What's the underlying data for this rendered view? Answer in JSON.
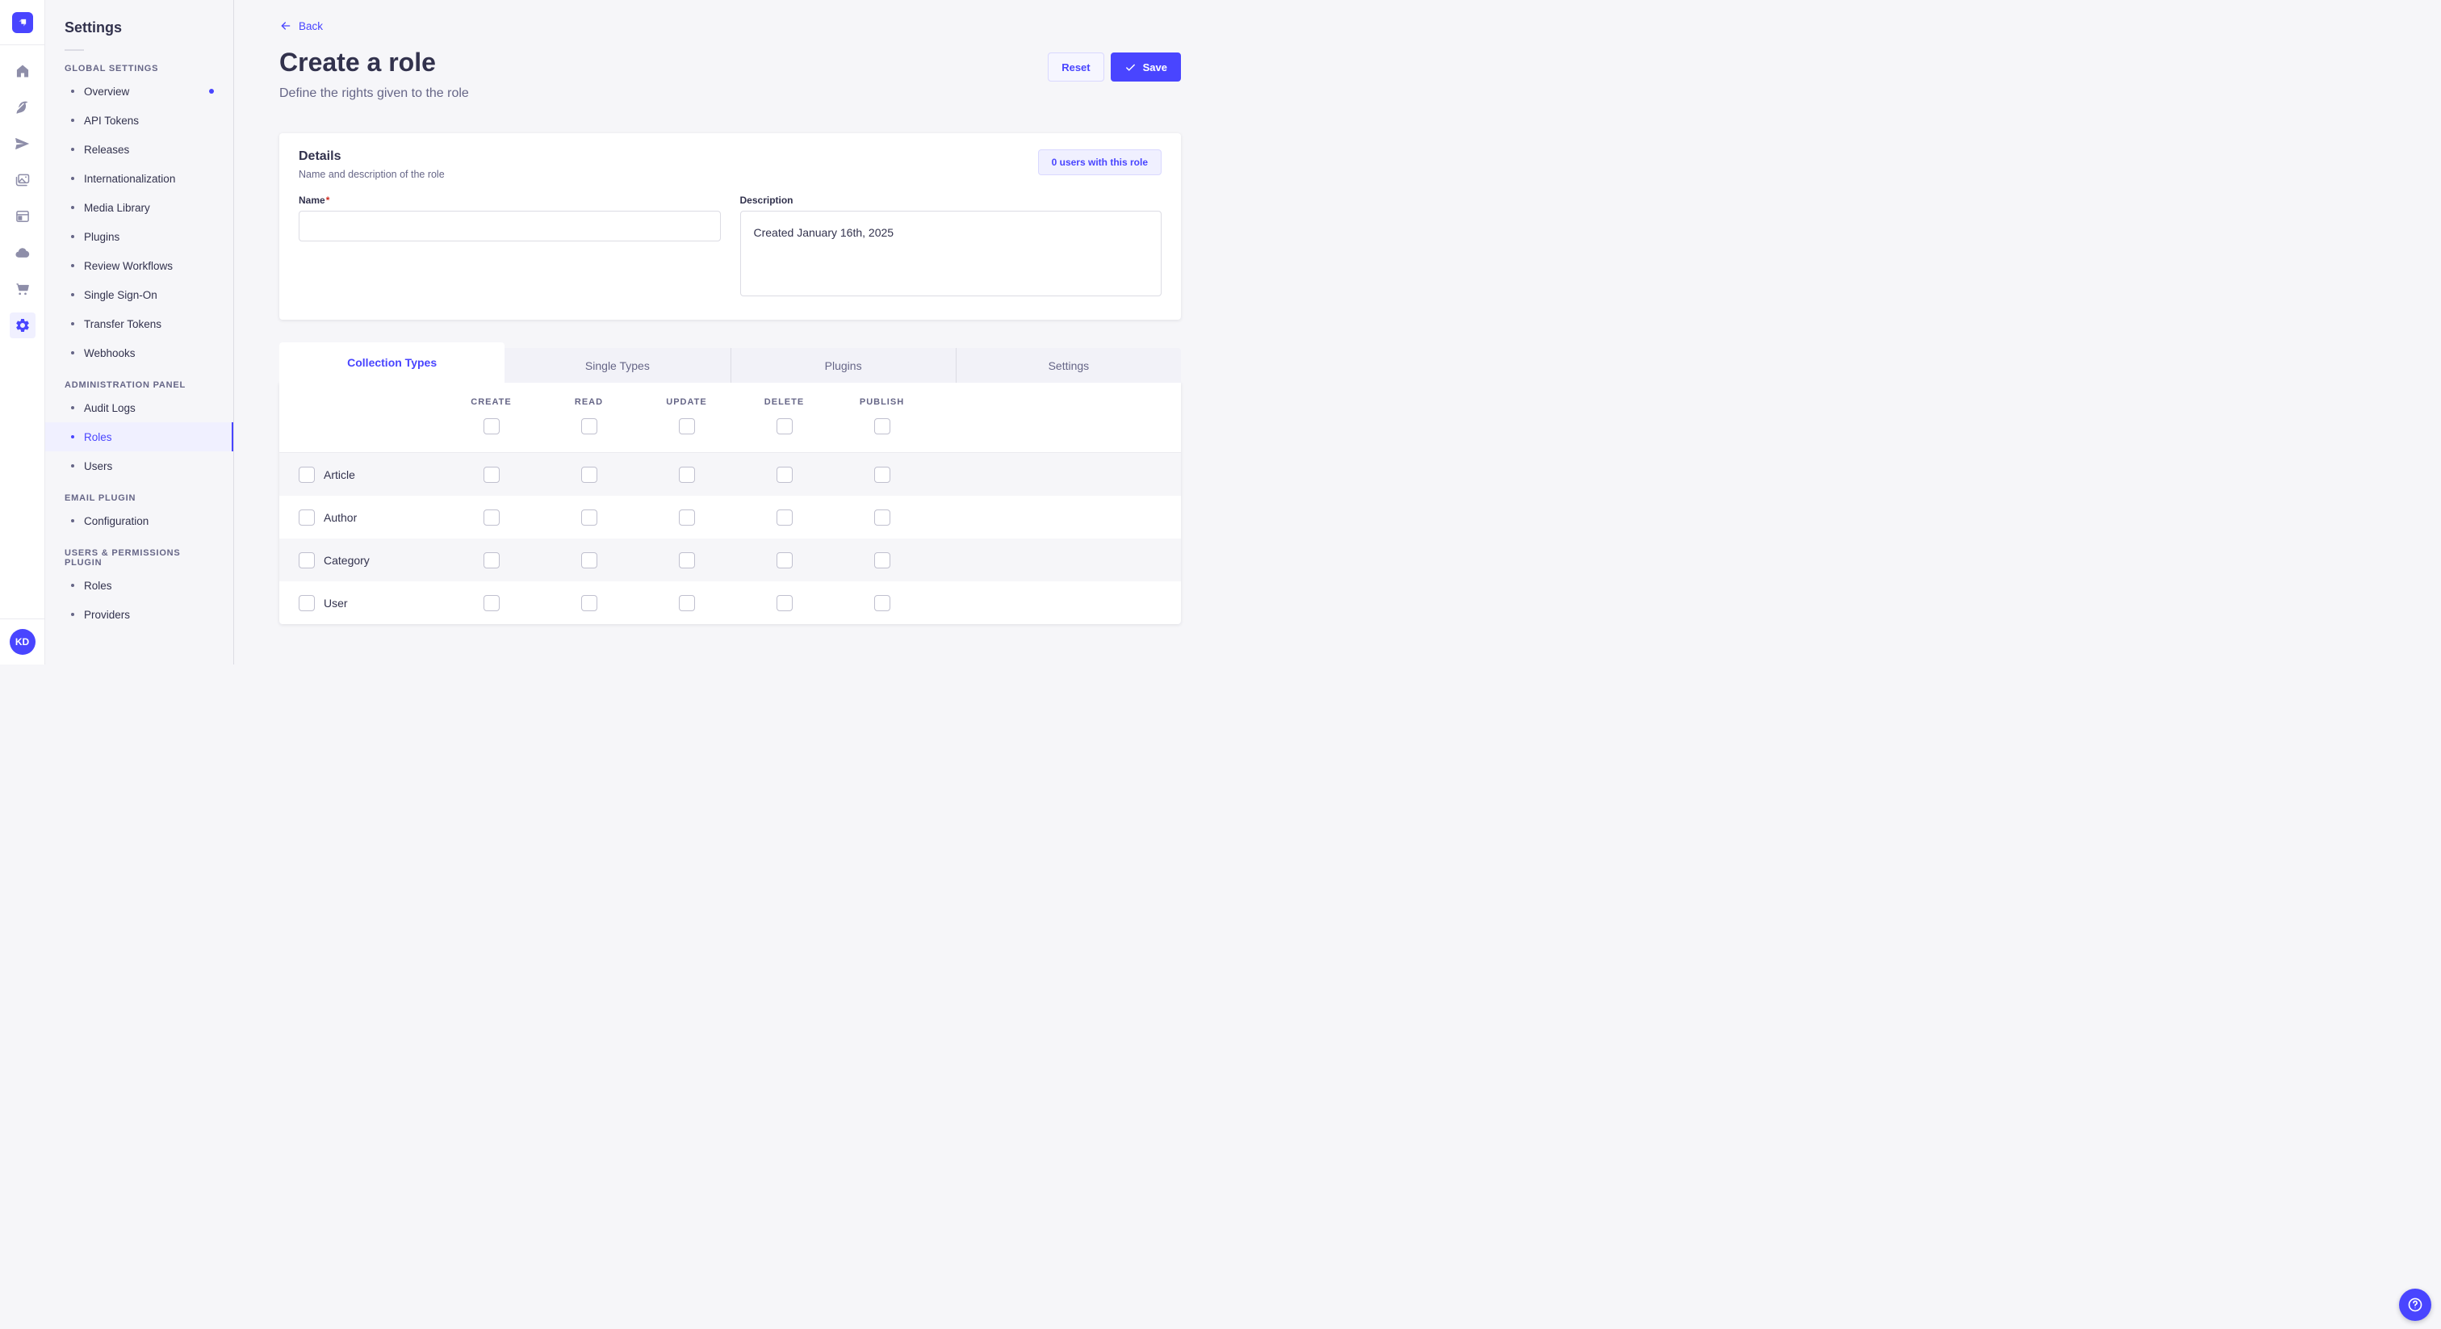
{
  "app": {
    "name": "Strapi admin"
  },
  "colors": {
    "primary": "#4945ff",
    "primary_bg": "#f0f0ff",
    "primary_border": "#d9d8ff",
    "page_bg": "#f6f6f9",
    "surface": "#ffffff",
    "text": "#32324d",
    "text_muted": "#666687",
    "border": "#dcdce4",
    "checkbox_border": "#c0c0cf",
    "required": "#d02b20"
  },
  "nav_rail": {
    "logo_icon": "strapi-logo",
    "icons": [
      "home-icon",
      "content-manager-icon",
      "release-icon",
      "media-library-icon",
      "content-type-builder-icon",
      "cloud-icon",
      "marketplace-icon",
      "settings-icon"
    ],
    "active_icon": "settings-icon",
    "user_initials": "KD"
  },
  "sidebar": {
    "title": "Settings",
    "sections": [
      {
        "label": "GLOBAL SETTINGS",
        "items": [
          {
            "label": "Overview",
            "notification_dot": true
          },
          {
            "label": "API Tokens"
          },
          {
            "label": "Releases"
          },
          {
            "label": "Internationalization"
          },
          {
            "label": "Media Library"
          },
          {
            "label": "Plugins"
          },
          {
            "label": "Review Workflows"
          },
          {
            "label": "Single Sign-On"
          },
          {
            "label": "Transfer Tokens"
          },
          {
            "label": "Webhooks"
          }
        ]
      },
      {
        "label": "ADMINISTRATION PANEL",
        "items": [
          {
            "label": "Audit Logs"
          },
          {
            "label": "Roles",
            "active": true
          },
          {
            "label": "Users"
          }
        ]
      },
      {
        "label": "EMAIL PLUGIN",
        "items": [
          {
            "label": "Configuration"
          }
        ]
      },
      {
        "label": "USERS & PERMISSIONS PLUGIN",
        "items": [
          {
            "label": "Roles"
          },
          {
            "label": "Providers"
          }
        ]
      }
    ]
  },
  "header": {
    "back": "Back",
    "title": "Create a role",
    "subtitle": "Define the rights given to the role"
  },
  "actions": {
    "reset": "Reset",
    "save": "Save"
  },
  "details": {
    "title": "Details",
    "subtitle": "Name and description of the role",
    "users_count_button": "0 users with this role",
    "fields": {
      "name": {
        "label": "Name",
        "required_mark": "*",
        "value": "",
        "placeholder": ""
      },
      "description": {
        "label": "Description",
        "value": "Created January 16th, 2025"
      }
    }
  },
  "permissions": {
    "tabs": [
      {
        "label": "Collection Types",
        "active": true
      },
      {
        "label": "Single Types"
      },
      {
        "label": "Plugins"
      },
      {
        "label": "Settings"
      }
    ],
    "columns": [
      "CREATE",
      "READ",
      "UPDATE",
      "DELETE",
      "PUBLISH"
    ],
    "rows": [
      {
        "label": "Article"
      },
      {
        "label": "Author"
      },
      {
        "label": "Category"
      },
      {
        "label": "User"
      }
    ],
    "all_checkboxes_checked": false
  },
  "user": {
    "initials": "KD"
  },
  "help": {
    "icon": "help-icon"
  }
}
